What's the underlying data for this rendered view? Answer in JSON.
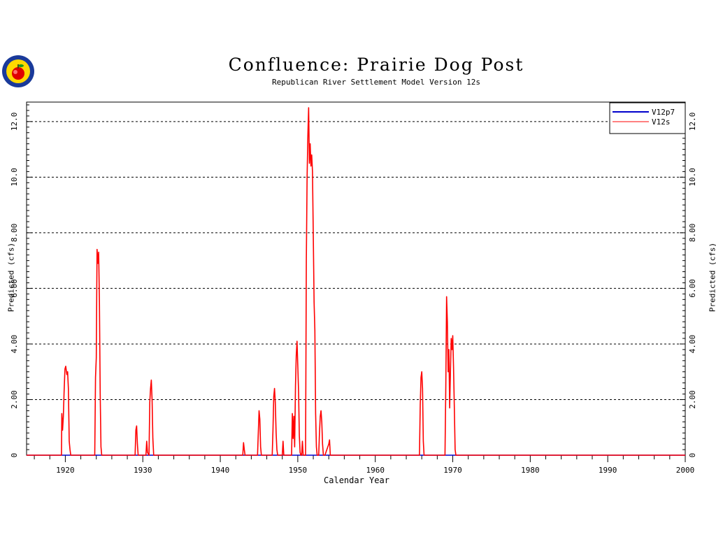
{
  "header": {
    "title": "Confluence: Prairie Dog Post",
    "subtitle": "Republican River Settlement Model Version 12s"
  },
  "chart_data": {
    "type": "line",
    "title": "Confluence: Prairie Dog Post",
    "subtitle": "Republican River Settlement Model Version 12s",
    "xlabel": "Calendar Year",
    "ylabel": "Predicted (cfs)",
    "xlim": [
      1915,
      2000
    ],
    "ylim": [
      0,
      12.7
    ],
    "x_ticks": [
      "1920",
      "1930",
      "1940",
      "1950",
      "1960",
      "1970",
      "1980",
      "1990",
      "2000"
    ],
    "y_ticks": [
      "0",
      "2.00",
      "4.00",
      "6.00",
      "8.00",
      "10.0",
      "12.0"
    ],
    "y_tick_values": [
      0,
      2,
      4,
      6,
      8,
      10,
      12
    ],
    "grid": "horizontal dashed at y ticks",
    "legend_position": "top-right",
    "colors": {
      "V12p7": "#0000cc",
      "V12s": "#ff0000"
    },
    "series": [
      {
        "name": "V12p7",
        "color": "#0000cc",
        "x": [
          1915,
          2000
        ],
        "y": [
          0,
          0
        ]
      },
      {
        "name": "V12s",
        "color": "#ff0000",
        "x": [
          1915,
          1919.5,
          1919.55,
          1919.65,
          1919.75,
          1919.85,
          1919.95,
          1920.05,
          1920.2,
          1920.3,
          1920.4,
          1920.5,
          1920.6,
          1920.7,
          1923.8,
          1923.9,
          1924.0,
          1924.1,
          1924.2,
          1924.3,
          1924.4,
          1924.5,
          1924.6,
          1924.7,
          1929.0,
          1929.1,
          1929.2,
          1929.3,
          1929.4,
          1930.4,
          1930.5,
          1930.6,
          1930.8,
          1930.9,
          1931.0,
          1931.1,
          1931.2,
          1931.3,
          1931.4,
          1942.9,
          1943.0,
          1943.1,
          1943.2,
          1944.8,
          1944.9,
          1945.0,
          1945.1,
          1945.2,
          1945.3,
          1946.7,
          1946.8,
          1946.9,
          1947.0,
          1947.1,
          1947.2,
          1947.3,
          1947.4,
          1947.5,
          1948.0,
          1948.1,
          1948.2,
          1949.2,
          1949.3,
          1949.4,
          1949.5,
          1949.6,
          1949.7,
          1949.8,
          1949.9,
          1950.0,
          1950.1,
          1950.2,
          1950.3,
          1950.4,
          1950.5,
          1950.6,
          1950.7,
          1951.0,
          1951.1,
          1951.2,
          1951.3,
          1951.4,
          1951.5,
          1951.6,
          1951.7,
          1951.8,
          1951.9,
          1952.0,
          1952.1,
          1952.2,
          1952.3,
          1952.4,
          1952.5,
          1952.6,
          1952.7,
          1952.8,
          1952.9,
          1953.0,
          1953.1,
          1953.2,
          1953.3,
          1953.4,
          1953.5,
          1954.0,
          1954.1,
          1954.2,
          1965.7,
          1965.8,
          1965.9,
          1966.0,
          1966.1,
          1966.2,
          1966.3,
          1966.4,
          1969.0,
          1969.1,
          1969.2,
          1969.3,
          1969.4,
          1969.5,
          1969.6,
          1969.7,
          1969.8,
          1969.9,
          1970.0,
          1970.1,
          1970.2,
          1970.3,
          1970.4,
          1970.5,
          1970.6,
          2000
        ],
        "y": [
          0,
          0,
          1.5,
          0.9,
          1.4,
          2.3,
          3.1,
          3.2,
          2.9,
          3.0,
          2.4,
          0.5,
          0.2,
          0,
          0,
          2.8,
          3.5,
          7.4,
          6.9,
          7.3,
          5.5,
          2.2,
          0.3,
          0,
          0,
          0.9,
          1.05,
          0.4,
          0,
          0,
          0.5,
          0.1,
          0,
          1.9,
          2.4,
          2.7,
          2.0,
          0.6,
          0,
          0,
          0.45,
          0.2,
          0,
          0,
          0.8,
          1.6,
          1.3,
          0.3,
          0,
          0,
          0.9,
          2.1,
          2.4,
          1.9,
          0.8,
          0.2,
          0,
          0,
          0,
          0.5,
          0,
          0,
          1.5,
          0.6,
          1.4,
          0.3,
          2.5,
          3.6,
          4.1,
          3.2,
          2.3,
          0.7,
          0.1,
          0,
          0,
          0.5,
          0,
          0,
          7.0,
          10.0,
          11.5,
          12.5,
          10.5,
          11.2,
          10.4,
          10.8,
          10.2,
          8.0,
          5.5,
          4.5,
          1.5,
          0.3,
          0,
          0,
          0,
          0.8,
          1.4,
          1.6,
          1.2,
          0.4,
          0,
          0,
          0,
          0.4,
          0.55,
          0,
          0,
          1.8,
          2.8,
          3.0,
          2.4,
          0.5,
          0,
          0,
          0,
          2.5,
          5.7,
          4.8,
          3.0,
          3.8,
          1.7,
          3.0,
          4.2,
          3.8,
          4.3,
          3.2,
          1.8,
          0.2,
          0,
          0,
          0,
          0
        ]
      }
    ]
  }
}
